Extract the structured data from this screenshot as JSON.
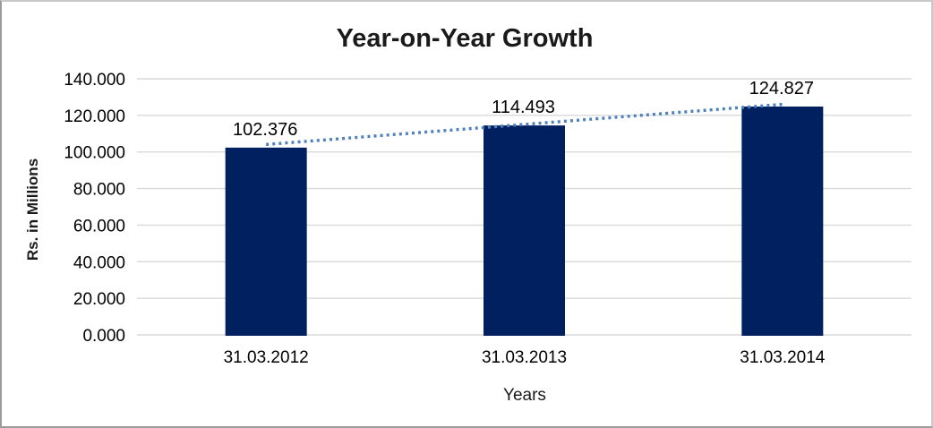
{
  "chart_data": {
    "type": "bar",
    "title": "Year-on-Year Growth",
    "xlabel": "Years",
    "ylabel": "Rs. in Millions",
    "categories": [
      "31.03.2012",
      "31.03.2013",
      "31.03.2014"
    ],
    "values": [
      102.376,
      114.493,
      124.827
    ],
    "data_labels": [
      "102.376",
      "114.493",
      "124.827"
    ],
    "ylim": [
      0,
      140
    ],
    "ytick_step": 20,
    "ytick_labels": [
      "0.000",
      "20.000",
      "40.000",
      "60.000",
      "80.000",
      "100.000",
      "120.000",
      "140.000"
    ],
    "grid": true,
    "legend": "none",
    "trendline": {
      "type": "linear",
      "style": "dotted"
    },
    "colors": {
      "bar": "#002060",
      "gridline": "#d9d9d9",
      "trendline": "#4f81bd",
      "text": "#1a1a1a",
      "frame_border": "#9b9b9b",
      "background": "#ffffff"
    }
  }
}
